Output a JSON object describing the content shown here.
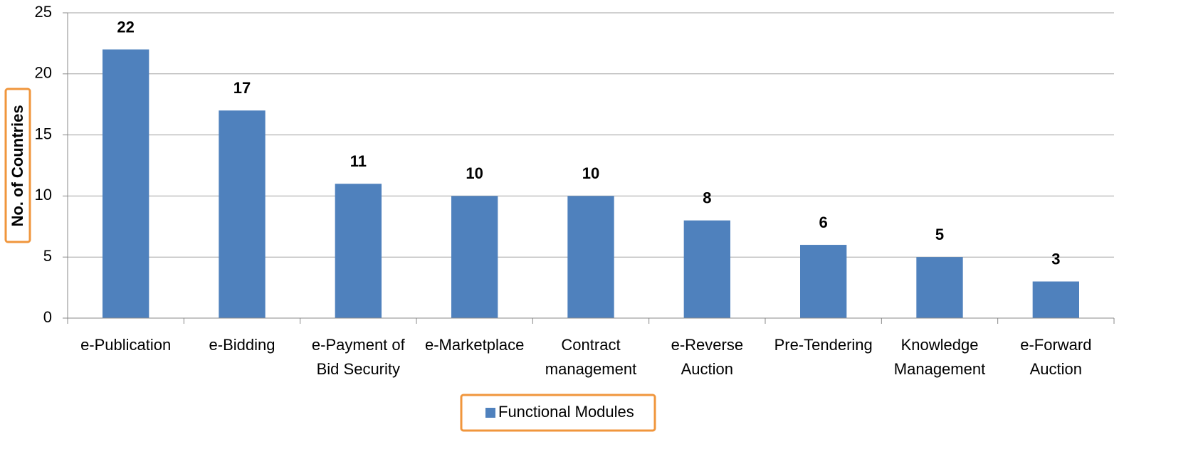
{
  "chart_data": {
    "type": "bar",
    "y_label": "No. of Countries",
    "categories": [
      "e-Publication",
      "e-Bidding",
      "e-Payment of Bid Security",
      "e-Marketplace",
      "Contract management",
      "e-Reverse Auction",
      "Pre-Tendering",
      "Knowledge Management",
      "e-Forward Auction"
    ],
    "series": [
      {
        "name": "Functional Modules",
        "color": "#4f81bd",
        "values": [
          22,
          17,
          11,
          10,
          10,
          8,
          6,
          5,
          3
        ]
      }
    ],
    "ylim": [
      0,
      25
    ],
    "yticks": [
      0,
      5,
      10,
      15,
      20,
      25
    ],
    "grid": true,
    "legend": "bottom"
  }
}
